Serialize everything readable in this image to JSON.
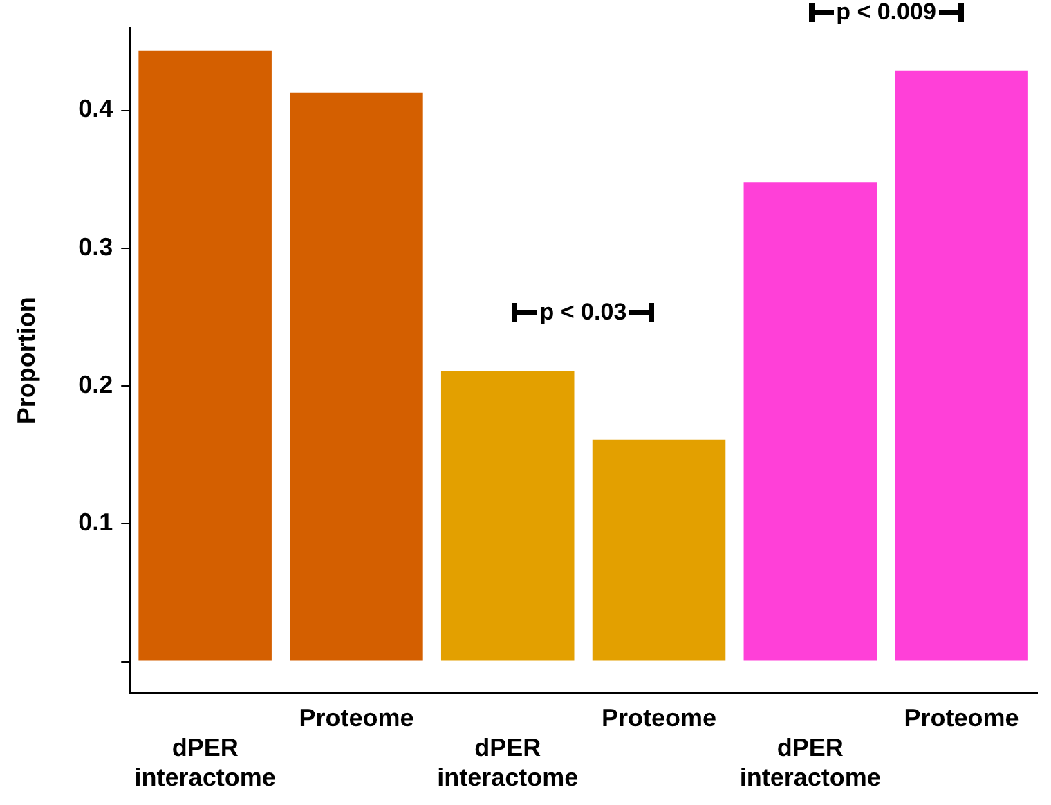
{
  "chart_data": {
    "type": "bar",
    "ylabel": "Proportion",
    "categories": [
      "dPER interactome",
      "Proteome",
      "dPER interactome",
      "Proteome",
      "dPER interactome",
      "Proteome"
    ],
    "values": [
      0.443,
      0.413,
      0.211,
      0.161,
      0.348,
      0.429
    ],
    "colors": [
      "#d45f00",
      "#d45f00",
      "#e3a000",
      "#e3a000",
      "#ff40d8",
      "#ff40d8"
    ],
    "ylim": [
      -0.023,
      0.46
    ],
    "yticks": [
      {
        "value": 0,
        "label": null
      },
      0.1,
      0.2,
      0.3,
      0.4
    ],
    "grid": false,
    "legend": false,
    "annotations": [
      "p < 0.03",
      "p < 0.009"
    ]
  }
}
